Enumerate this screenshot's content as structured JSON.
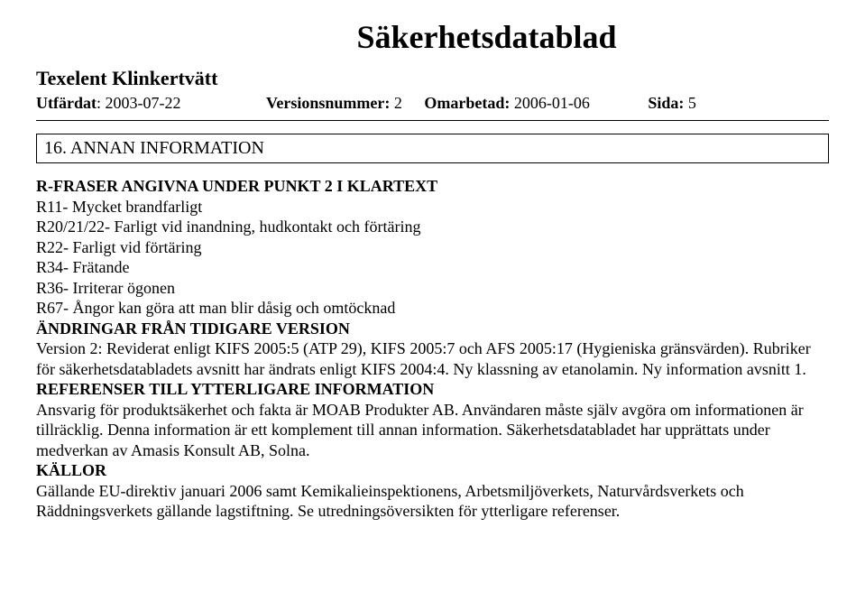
{
  "header": {
    "main_title": "Säkerhetsdatablad",
    "subtitle": "Texelent Klinkertvätt",
    "issued_label": "Utfärdat",
    "issued_date": "2003-07-22",
    "version_label": "Versionsnummer:",
    "version_value": "2",
    "revised_label": "Omarbetad:",
    "revised_date": "2006-01-06",
    "page_label": "Sida:",
    "page_value": "5"
  },
  "section": {
    "title": "16. ANNAN INFORMATION"
  },
  "content": {
    "rphrases_heading": "R-FRASER ANGIVNA UNDER PUNKT 2 I KLARTEXT",
    "r11": "R11- Mycket brandfarligt",
    "r20": "R20/21/22- Farligt vid inandning, hudkontakt och förtäring",
    "r22": "R22- Farligt vid förtäring",
    "r34": "R34- Frätande",
    "r36": "R36- Irriterar ögonen",
    "r67": "R67- Ångor kan göra att man blir dåsig och omtöcknad",
    "changes_heading": "ÄNDRINGAR FRÅN TIDIGARE VERSION",
    "changes_text": "Version 2: Reviderat enligt KIFS 2005:5 (ATP 29), KIFS 2005:7 och AFS 2005:17 (Hygieniska gränsvärden). Rubriker för säkerhetsdatabladets avsnitt har ändrats enligt KIFS 2004:4. Ny klassning av etanolamin. Ny information avsnitt 1.",
    "refs_heading": "REFERENSER TILL YTTERLIGARE INFORMATION",
    "refs_text": "Ansvarig för produktsäkerhet och fakta är MOAB Produkter AB. Användaren måste själv avgöra om informationen är tillräcklig. Denna information är ett komplement till annan information. Säkerhetsdatabladet har upprättats under medverkan av Amasis Konsult AB, Solna.",
    "sources_heading": "KÄLLOR",
    "sources_text": "Gällande EU-direktiv januari 2006 samt Kemikalieinspektionens, Arbetsmiljöverkets, Naturvårdsverkets och Räddningsverkets gällande lagstiftning. Se utredningsöversikten för ytterligare referenser."
  }
}
